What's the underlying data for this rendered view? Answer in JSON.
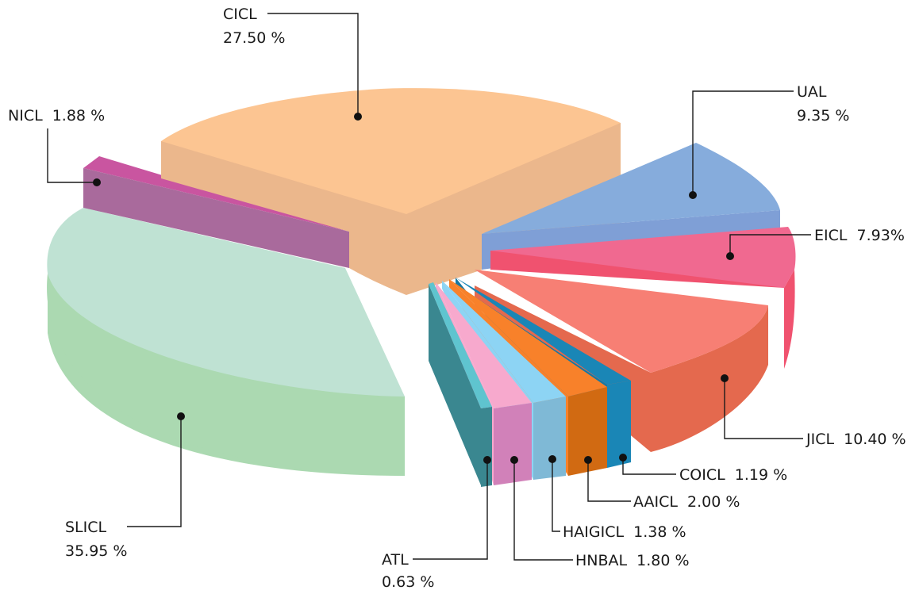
{
  "chart_data": {
    "type": "pie",
    "title": "",
    "slices": [
      {
        "label": "SLICL",
        "value": "35.95 %",
        "share": 35.95,
        "color": "#bfe2d3"
      },
      {
        "label": "NICL",
        "value": "1.88 %",
        "share": 1.88,
        "color": "#c955a0"
      },
      {
        "label": "CICL",
        "value": "27.50 %",
        "share": 27.5,
        "color": "#fcc592"
      },
      {
        "label": "UAL",
        "value": "9.35 %",
        "share": 9.35,
        "color": "#86acdc"
      },
      {
        "label": "EICL",
        "value": "7.93%",
        "share": 7.93,
        "color": "#f06990"
      },
      {
        "label": "JICL",
        "value": "10.40 %",
        "share": 10.4,
        "color": "#f77f74"
      },
      {
        "label": "COICL",
        "value": "1.19 %",
        "share": 1.19,
        "color": "#1a86b6"
      },
      {
        "label": "AAICL",
        "value": "2.00 %",
        "share": 2.0,
        "color": "#f8812a"
      },
      {
        "label": "HAIGICL",
        "value": "1.38 %",
        "share": 1.38,
        "color": "#8dd4f4"
      },
      {
        "label": "HNBAL",
        "value": "1.80 %",
        "share": 1.8,
        "color": "#f7a9cd"
      },
      {
        "label": "ATL",
        "value": "0.63 %",
        "share": 0.63,
        "color": "#5fc4cf"
      }
    ]
  }
}
